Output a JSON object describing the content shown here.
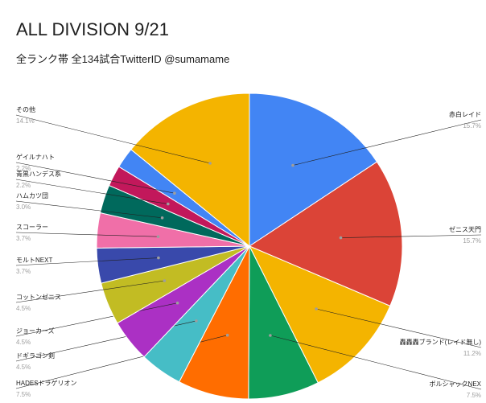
{
  "title": "ALL DIVISION 9/21",
  "subtitle": "全ランク帯 全134試合TwitterID @sumamame",
  "chart_data": {
    "type": "pie",
    "title": "ALL DIVISION 9/21",
    "subtitle": "全ランク帯 全134試合TwitterID @sumamame",
    "slices": [
      {
        "label": "赤白レイド",
        "value": 15.7,
        "percent_label": "15.7%",
        "color": "#4285f4"
      },
      {
        "label": "ゼニス天門",
        "value": 15.7,
        "percent_label": "15.7%",
        "color": "#db4437"
      },
      {
        "label": "轟轟轟ブランド(レイド無し)",
        "value": 11.2,
        "percent_label": "11.2%",
        "color": "#f4b400"
      },
      {
        "label": "ボルシャックNEX",
        "value": 7.5,
        "percent_label": "7.5%",
        "color": "#0f9d58"
      },
      {
        "label": "HADESドラゲリオン",
        "value": 7.5,
        "percent_label": "7.5%",
        "color": "#ff6d00"
      },
      {
        "label": "ドギラゴン剣",
        "value": 4.5,
        "percent_label": "4.5%",
        "color": "#46bdc6"
      },
      {
        "label": "ジョーカーズ",
        "value": 4.5,
        "percent_label": "4.5%",
        "color": "#ab30c4"
      },
      {
        "label": "コットンゼニス",
        "value": 4.5,
        "percent_label": "4.5%",
        "color": "#c2bc23"
      },
      {
        "label": "モルトNEXT",
        "value": 3.7,
        "percent_label": "3.7%",
        "color": "#3949ab"
      },
      {
        "label": "スコーラー",
        "value": 3.7,
        "percent_label": "3.7%",
        "color": "#f06fa8"
      },
      {
        "label": "ハムカツ団",
        "value": 3.0,
        "percent_label": "3.0%",
        "color": "#00695c"
      },
      {
        "label": "青黒ハンデス系",
        "value": 2.2,
        "percent_label": "2.2%",
        "color": "#c2185b"
      },
      {
        "label": "ゲイルナハト",
        "value": 2.2,
        "percent_label": "2.2%",
        "color": "#4285f4"
      },
      {
        "label": "その他",
        "value": 14.1,
        "percent_label": "14.1%",
        "color": "#f4b400"
      }
    ]
  }
}
